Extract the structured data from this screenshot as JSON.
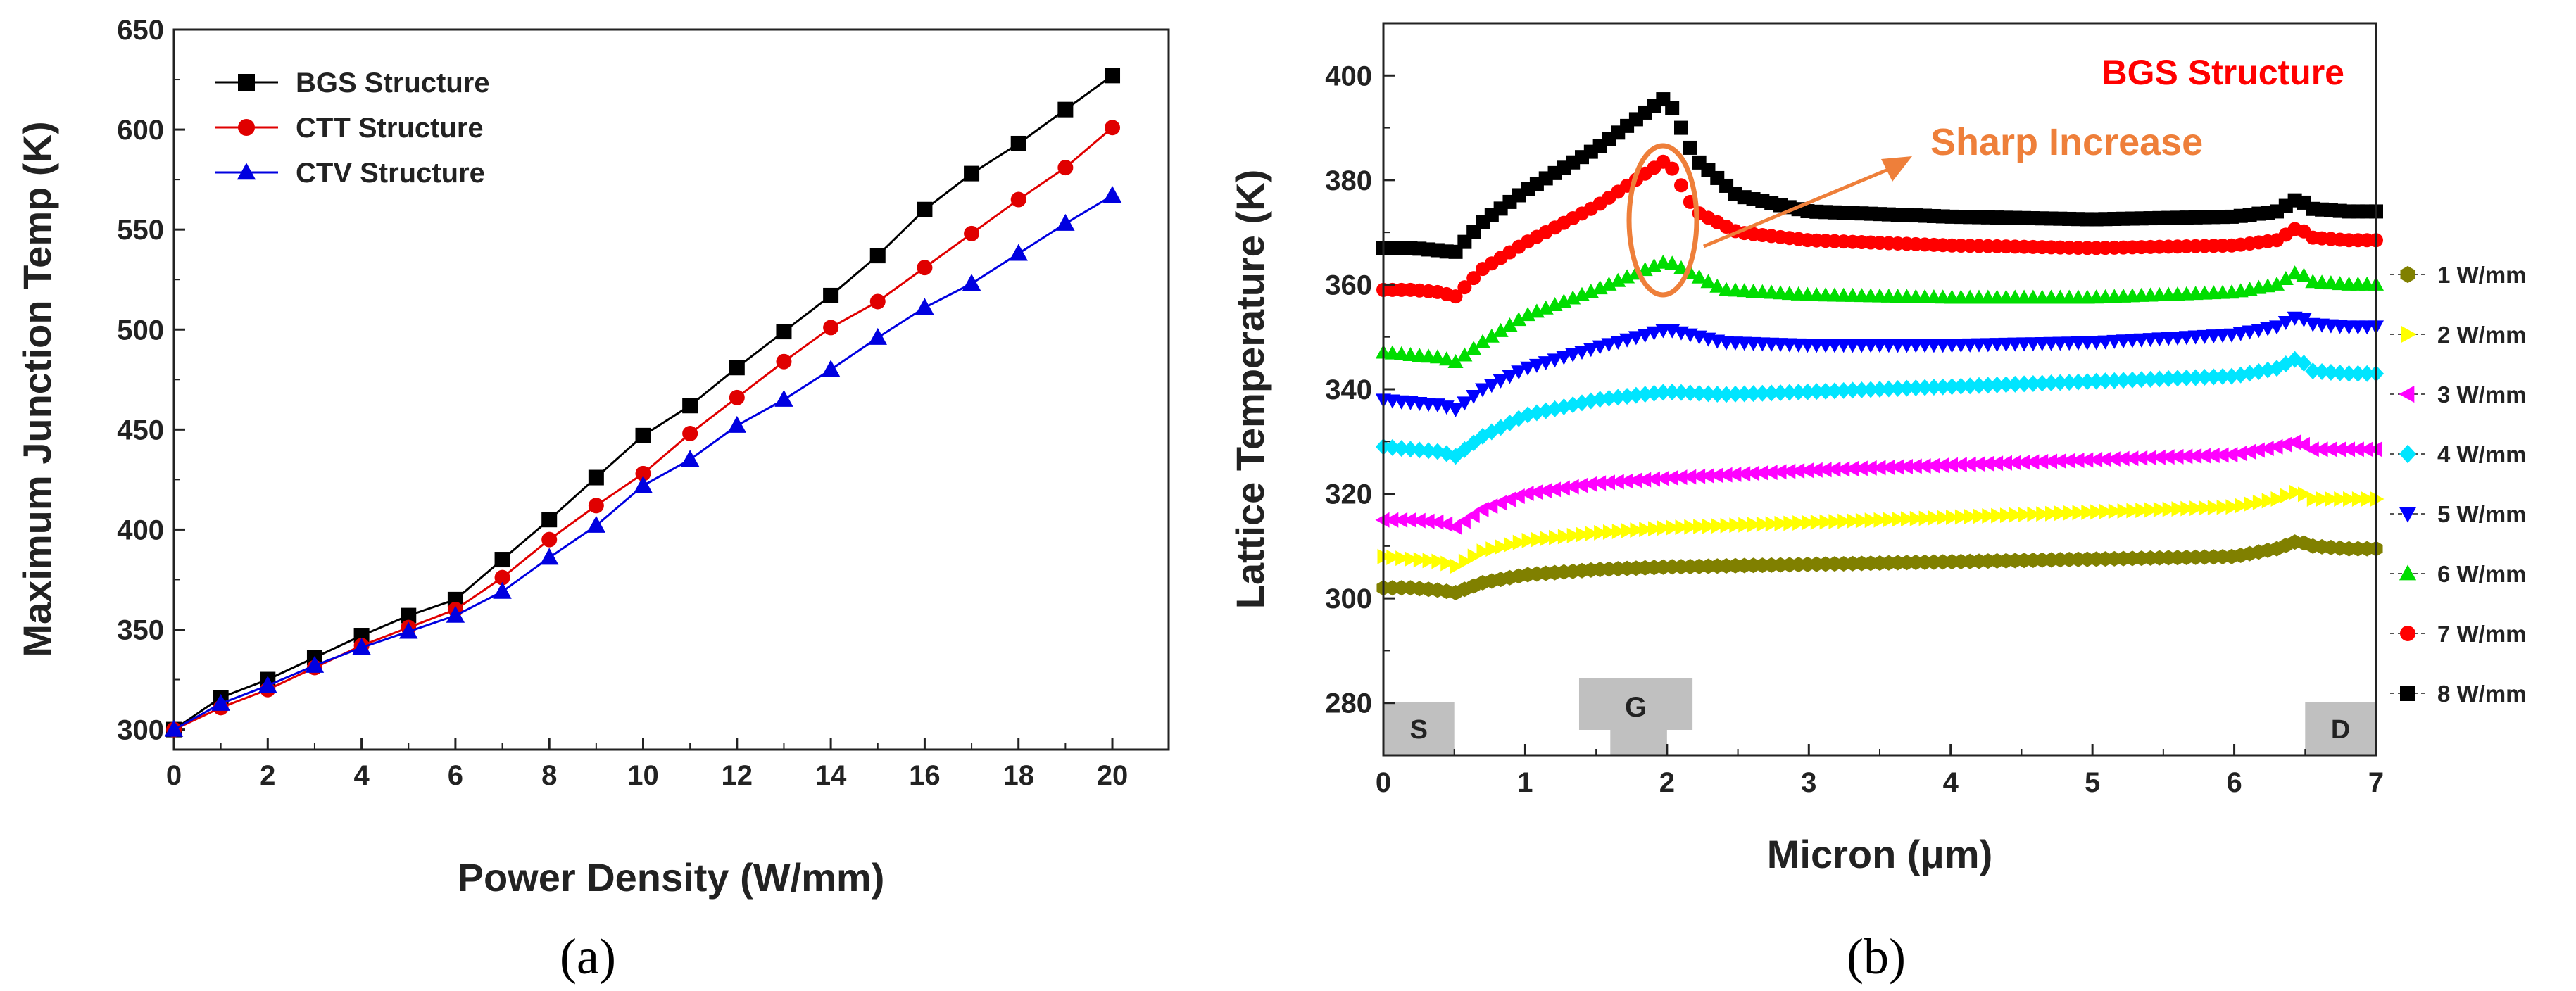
{
  "captions": {
    "a": "(a)",
    "b": "(b)"
  },
  "chart_data": [
    {
      "id": "a",
      "type": "line",
      "title": "",
      "xlabel": "Power Density (W/mm)",
      "ylabel": "Maximum Junction Temp (K)",
      "xlim": [
        0,
        21.2
      ],
      "ylim": [
        290,
        650
      ],
      "xticks": [
        0,
        2,
        4,
        6,
        8,
        10,
        12,
        14,
        16,
        18,
        20
      ],
      "yticks": [
        300,
        350,
        400,
        450,
        500,
        550,
        600,
        650
      ],
      "legend_position": "top-left",
      "x": [
        0,
        1,
        2,
        3,
        4,
        5,
        6,
        7,
        8,
        9,
        10,
        11,
        12,
        13,
        14,
        15,
        16,
        17,
        18,
        19,
        20
      ],
      "series": [
        {
          "name": "BGS Structure",
          "color": "#000000",
          "marker": "square",
          "values": [
            300,
            316,
            325,
            336,
            347,
            357,
            365,
            385,
            405,
            426,
            447,
            462,
            481,
            499,
            517,
            537,
            560,
            578,
            593,
            610,
            627
          ]
        },
        {
          "name": "CTT Structure",
          "color": "#e00000",
          "marker": "circle",
          "values": [
            300,
            311,
            320,
            331,
            342,
            351,
            360,
            376,
            395,
            412,
            428,
            448,
            466,
            484,
            501,
            514,
            531,
            548,
            565,
            581,
            601
          ]
        },
        {
          "name": "CTV Structure",
          "color": "#0000e0",
          "marker": "triangle",
          "values": [
            300,
            313,
            322,
            332,
            341,
            349,
            357,
            369,
            386,
            402,
            422,
            435,
            452,
            465,
            480,
            496,
            511,
            523,
            538,
            553,
            567
          ]
        }
      ]
    },
    {
      "id": "b",
      "type": "scatter",
      "title": "BGS Structure",
      "xlabel": "Micron (μm)",
      "ylabel": "Lattice Temperature (K)",
      "xlim": [
        0,
        7
      ],
      "ylim": [
        270,
        410
      ],
      "xticks": [
        0,
        1,
        2,
        3,
        4,
        5,
        6,
        7
      ],
      "yticks": [
        280,
        300,
        320,
        340,
        360,
        380,
        400
      ],
      "legend_position": "right",
      "annotation": "Sharp Increase",
      "regions": [
        {
          "label": "S",
          "x": [
            0,
            0.5
          ]
        },
        {
          "label": "G",
          "x": [
            1.6,
            2.0
          ],
          "top_x": [
            1.38,
            2.18
          ]
        },
        {
          "label": "D",
          "x": [
            6.5,
            7
          ]
        }
      ],
      "series": [
        {
          "name": "1 W/mm",
          "color": "#808000",
          "marker": "hexagon",
          "x": [
            0,
            0.2,
            0.42,
            0.5,
            0.7,
            1.0,
            1.5,
            2.0,
            3,
            4,
            5,
            6,
            6.3,
            6.45,
            6.55,
            6.8,
            7.0
          ],
          "values": [
            302,
            302,
            301.5,
            301,
            303,
            304.5,
            305.5,
            306,
            306.5,
            307,
            307.5,
            308,
            309.5,
            311,
            310,
            309.5,
            309.5
          ]
        },
        {
          "name": "2 W/mm",
          "color": "#ffff00",
          "marker": "triangle-right",
          "x": [
            0,
            0.2,
            0.42,
            0.5,
            0.7,
            1.0,
            1.5,
            2.0,
            3,
            4,
            5,
            6,
            6.3,
            6.45,
            6.55,
            6.8,
            7.0
          ],
          "values": [
            308,
            307.5,
            307,
            306,
            309,
            311,
            312.5,
            313.5,
            314.5,
            315.5,
            316.5,
            317.5,
            319,
            320.5,
            319,
            319,
            319
          ]
        },
        {
          "name": "3 W/mm",
          "color": "#ff00ff",
          "marker": "triangle-left",
          "x": [
            0,
            0.2,
            0.42,
            0.5,
            0.7,
            1.0,
            1.5,
            2.0,
            3,
            4,
            5,
            6,
            6.3,
            6.45,
            6.55,
            6.8,
            7.0
          ],
          "values": [
            315,
            315,
            314.5,
            313.5,
            317,
            320,
            322,
            323,
            324.5,
            325.5,
            326.5,
            327.5,
            329,
            330,
            328.5,
            328.5,
            328.5
          ]
        },
        {
          "name": "4 W/mm",
          "color": "#00e5ff",
          "marker": "diamond",
          "x": [
            0,
            0.2,
            0.42,
            0.5,
            0.7,
            1.0,
            1.5,
            2.0,
            2.4,
            3,
            4,
            5,
            6,
            6.3,
            6.45,
            6.55,
            6.8,
            7.0
          ],
          "values": [
            329,
            328.5,
            328,
            327,
            331,
            335,
            338,
            339.5,
            339,
            339.5,
            340.5,
            341.5,
            342.5,
            344,
            346,
            343.5,
            343,
            343
          ]
        },
        {
          "name": "5 W/mm",
          "color": "#0000ff",
          "marker": "triangle-down",
          "x": [
            0,
            0.2,
            0.42,
            0.5,
            0.7,
            1.0,
            1.5,
            2.0,
            2.4,
            3,
            4,
            5,
            6,
            6.3,
            6.45,
            6.55,
            6.8,
            7.0
          ],
          "values": [
            338,
            337.5,
            337,
            336,
            340,
            344,
            348,
            351.5,
            349,
            348.5,
            348.5,
            349,
            350.5,
            352,
            354,
            352.5,
            352,
            352
          ]
        },
        {
          "name": "6 W/mm",
          "color": "#00dd00",
          "marker": "triangle",
          "x": [
            0,
            0.2,
            0.42,
            0.5,
            0.7,
            1.0,
            1.5,
            2.0,
            2.4,
            3,
            4,
            5,
            6,
            6.3,
            6.45,
            6.55,
            6.8,
            7.0
          ],
          "values": [
            347,
            346.5,
            346,
            345,
            349,
            354,
            359,
            364.5,
            359,
            358,
            357.5,
            357.5,
            358.5,
            360,
            362.5,
            360.5,
            360,
            360
          ]
        },
        {
          "name": "7 W/mm",
          "color": "#ff0000",
          "marker": "circle",
          "x": [
            0,
            0.2,
            0.42,
            0.5,
            0.7,
            1.0,
            1.5,
            2.0,
            2.2,
            2.5,
            3,
            4,
            5,
            6,
            6.3,
            6.45,
            6.55,
            6.8,
            7.0
          ],
          "values": [
            359,
            359,
            358.5,
            357.5,
            363,
            368,
            375,
            384,
            374,
            370,
            368.5,
            367.5,
            367,
            367.5,
            368.5,
            371,
            369,
            368.5,
            368.5
          ]
        },
        {
          "name": "8 W/mm",
          "color": "#000000",
          "marker": "square",
          "x": [
            0,
            0.2,
            0.42,
            0.5,
            0.7,
            1.0,
            1.5,
            2.0,
            2.2,
            2.5,
            3,
            4,
            5,
            6,
            6.3,
            6.45,
            6.55,
            6.8,
            7.0
          ],
          "values": [
            367,
            367,
            366.5,
            366,
            372,
            378,
            386,
            396,
            384,
            377,
            374,
            373,
            372.5,
            373,
            374,
            376.5,
            374.5,
            374,
            374
          ]
        }
      ]
    }
  ]
}
